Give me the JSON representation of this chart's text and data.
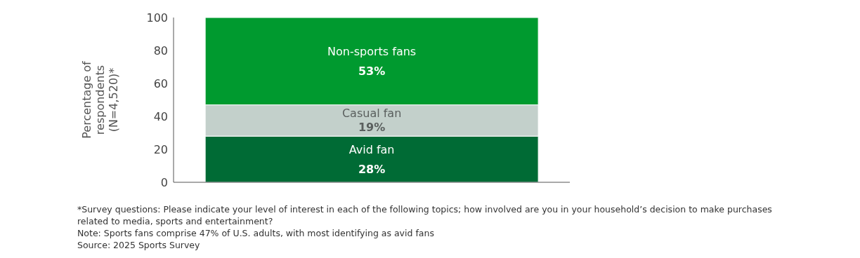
{
  "chart_data": {
    "type": "bar",
    "stacked": true,
    "ylabel": "Percentage of respondents (N=4,520)*",
    "categories": [
      null
    ],
    "series": [
      {
        "name": "Avid fan",
        "color": "#006b35",
        "values": [
          28
        ],
        "value_labels": [
          "28%"
        ]
      },
      {
        "name": "Casual fan",
        "color": "#c3d0cb",
        "values": [
          19
        ],
        "value_labels": [
          "19%"
        ]
      },
      {
        "name": "Non-sports fans",
        "color": "#009a2f",
        "values": [
          53
        ],
        "value_labels": [
          "53%"
        ]
      }
    ],
    "ylim": [
      0,
      100
    ],
    "yticks": [
      0,
      20,
      40,
      60,
      80,
      100
    ],
    "annotations": [
      "*Survey questions: Please indicate your level of interest in each of the following topics; how involved are you in your household’s decision to make purchases related to media, sports and entertainment?",
      "Note: Sports fans comprise 47% of U.S. adults, with most identifying as avid fans",
      "Source: 2025 Sports Survey"
    ]
  }
}
